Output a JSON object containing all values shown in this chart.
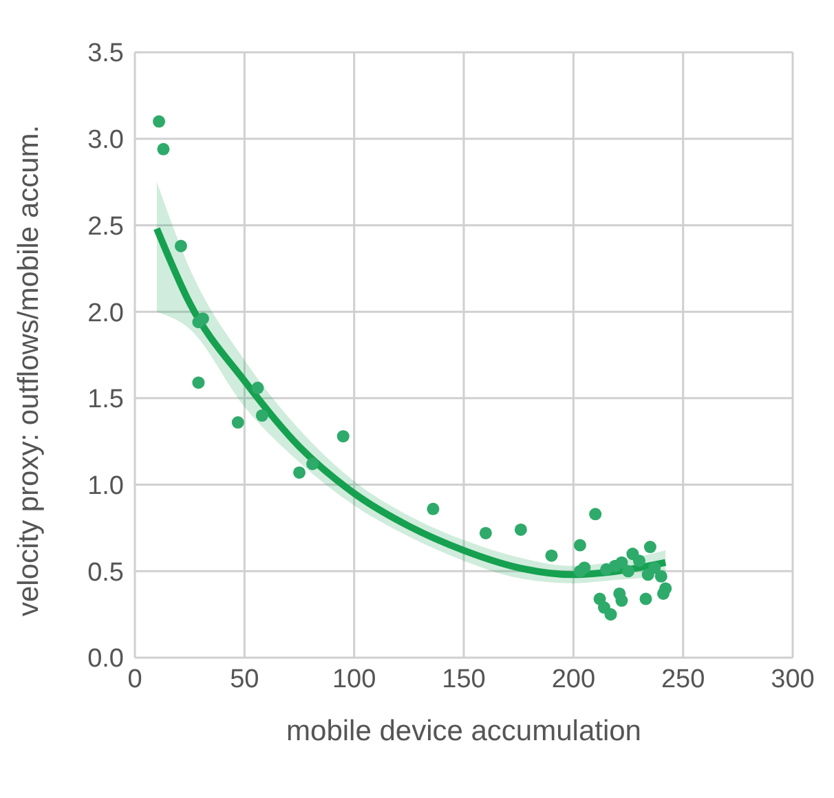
{
  "chart_data": {
    "type": "scatter",
    "xlabel": "mobile device accumulation",
    "ylabel": "velocity proxy: outflows/mobile accum.",
    "xlim": [
      0,
      300
    ],
    "xticks": [
      0,
      50,
      100,
      150,
      200,
      250,
      300
    ],
    "ylim": [
      0,
      3.5
    ],
    "yticks": [
      {
        "value": 0,
        "label": "0.0"
      },
      {
        "value": 0.5,
        "label": "0.5"
      },
      {
        "value": 1,
        "label": "1.0"
      },
      {
        "value": 1.5,
        "label": "1.5"
      },
      {
        "value": 2,
        "label": "2.0"
      },
      {
        "value": 2.5,
        "label": "2.5"
      },
      {
        "value": 3,
        "label": "3.0"
      },
      {
        "value": 3.5,
        "label": "3.5"
      }
    ],
    "grid": true,
    "marker": "circle",
    "series": [
      {
        "color": "#2eaa6a",
        "x": [
          11,
          13,
          21,
          29,
          31,
          29,
          47,
          58,
          56,
          75,
          81,
          95,
          136,
          160,
          176,
          190,
          203,
          210,
          203,
          212,
          214,
          217,
          221,
          222,
          233,
          235,
          242,
          241,
          205,
          215,
          222,
          227,
          230,
          237,
          240,
          225,
          234,
          219
        ],
        "values": [
          3.1,
          2.94,
          2.38,
          1.94,
          1.96,
          1.59,
          1.36,
          1.4,
          1.56,
          1.07,
          1.12,
          1.28,
          0.86,
          0.72,
          0.74,
          0.59,
          0.65,
          0.83,
          0.5,
          0.34,
          0.29,
          0.25,
          0.37,
          0.33,
          0.34,
          0.64,
          0.4,
          0.37,
          0.52,
          0.51,
          0.55,
          0.6,
          0.56,
          0.52,
          0.47,
          0.5,
          0.48,
          0.53
        ]
      },
      {
        "type": "line",
        "color": "#16a150",
        "marker": "none",
        "x": [
          10,
          25,
          50,
          75,
          100,
          125,
          150,
          175,
          200,
          220,
          242
        ],
        "values": [
          2.48,
          2.05,
          1.6,
          1.22,
          0.95,
          0.76,
          0.62,
          0.52,
          0.48,
          0.5,
          0.55
        ],
        "lower": [
          2.0,
          1.9,
          1.45,
          1.13,
          0.88,
          0.7,
          0.56,
          0.46,
          0.43,
          0.45,
          0.47
        ],
        "upper": [
          2.75,
          2.25,
          1.72,
          1.32,
          1.02,
          0.82,
          0.68,
          0.58,
          0.53,
          0.56,
          0.62
        ]
      }
    ]
  }
}
